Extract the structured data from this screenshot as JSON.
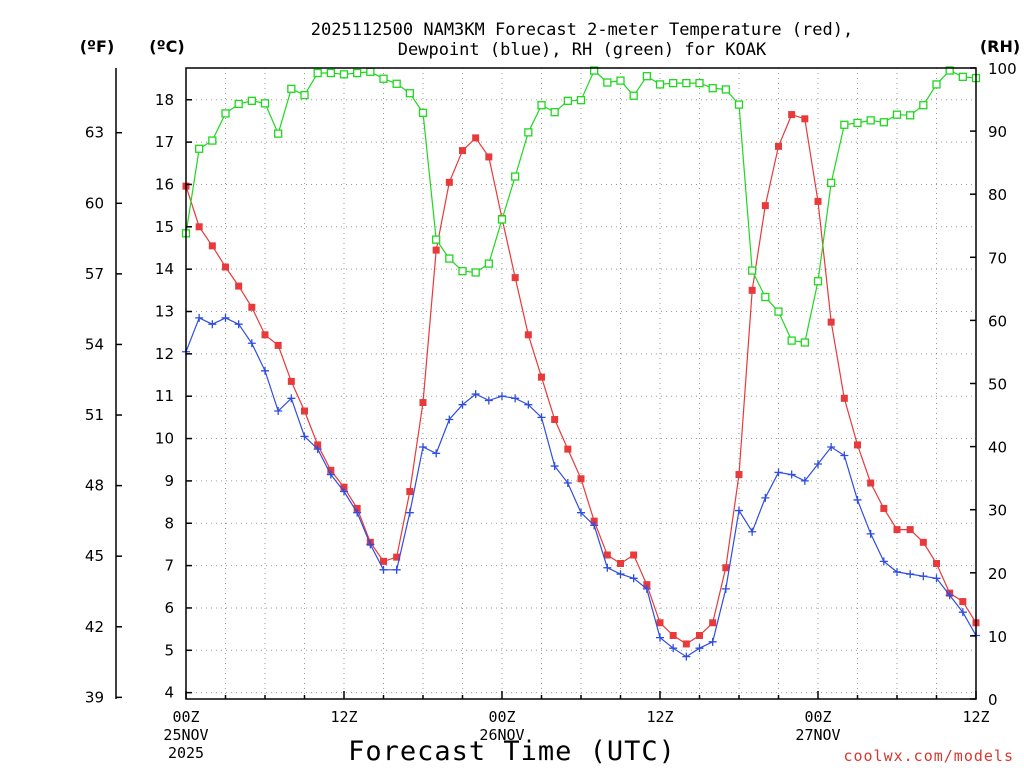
{
  "chart_data": {
    "type": "line",
    "title_line1": "2025112500 NAM3KM Forecast 2-meter Temperature (red),",
    "title_line2": "Dewpoint (blue), RH (green) for KOAK",
    "xlabel": "Forecast Time (UTC)",
    "credit": "coolwx.com/models",
    "units": {
      "fahrenheit": "(ºF)",
      "celsius": "(ºC)",
      "rh": "(RH)"
    },
    "x_range_hours": [
      0,
      60
    ],
    "y_celsius_range": [
      3.85,
      18.75
    ],
    "y_rh_range": [
      0,
      100
    ],
    "fahrenheit_ticks": [
      "39",
      "42",
      "45",
      "48",
      "51",
      "54",
      "57",
      "60",
      "63"
    ],
    "fahrenheit_tick_values": [
      39,
      42,
      45,
      48,
      51,
      54,
      57,
      60,
      63
    ],
    "celsius_ticks": [
      "4",
      "5",
      "6",
      "7",
      "8",
      "9",
      "10",
      "11",
      "12",
      "13",
      "14",
      "15",
      "16",
      "17",
      "18"
    ],
    "celsius_tick_values": [
      4,
      5,
      6,
      7,
      8,
      9,
      10,
      11,
      12,
      13,
      14,
      15,
      16,
      17,
      18
    ],
    "rh_ticks": [
      "0",
      "10",
      "20",
      "30",
      "40",
      "50",
      "60",
      "70",
      "80",
      "90",
      "100"
    ],
    "rh_tick_values": [
      0,
      10,
      20,
      30,
      40,
      50,
      60,
      70,
      80,
      90,
      100
    ],
    "x_ticks": [
      {
        "hour": 0,
        "line1": "00Z",
        "line2": "25NOV",
        "line3": "2025"
      },
      {
        "hour": 12,
        "line1": "12Z",
        "line2": "",
        "line3": ""
      },
      {
        "hour": 24,
        "line1": "00Z",
        "line2": "26NOV",
        "line3": ""
      },
      {
        "hour": 36,
        "line1": "12Z",
        "line2": "",
        "line3": ""
      },
      {
        "hour": 48,
        "line1": "00Z",
        "line2": "27NOV",
        "line3": ""
      },
      {
        "hour": 60,
        "line1": "12Z",
        "line2": "",
        "line3": ""
      }
    ],
    "series": [
      {
        "name": "2-meter Temperature",
        "color": "#e8393b",
        "unit": "C",
        "values": [
          15.96,
          15.0,
          14.55,
          14.05,
          13.6,
          13.1,
          12.45,
          12.2,
          11.35,
          10.65,
          9.85,
          9.25,
          8.85,
          8.35,
          7.55,
          7.1,
          7.2,
          8.75,
          10.85,
          14.45,
          16.05,
          16.8,
          17.1,
          16.65,
          15.2,
          13.8,
          12.45,
          11.45,
          10.45,
          9.75,
          9.05,
          8.05,
          7.25,
          7.05,
          7.25,
          6.55,
          5.65,
          5.35,
          5.15,
          5.35,
          5.65,
          6.95,
          9.15,
          13.5,
          15.5,
          16.9,
          17.65,
          17.55,
          15.6,
          12.75,
          10.95,
          9.85,
          8.95,
          8.35,
          7.85,
          7.85,
          7.55,
          7.05,
          6.35,
          6.15,
          5.65
        ]
      },
      {
        "name": "Dewpoint",
        "color": "#2f4de0",
        "unit": "C",
        "values": [
          12.05,
          12.85,
          12.7,
          12.85,
          12.7,
          12.25,
          11.6,
          10.65,
          10.95,
          10.05,
          9.75,
          9.15,
          8.75,
          8.25,
          7.5,
          6.9,
          6.9,
          8.25,
          9.8,
          9.65,
          10.45,
          10.8,
          11.05,
          10.9,
          11.0,
          10.95,
          10.8,
          10.5,
          9.35,
          8.95,
          8.25,
          7.95,
          6.95,
          6.8,
          6.7,
          6.45,
          5.3,
          5.05,
          4.85,
          5.05,
          5.2,
          6.45,
          8.3,
          7.8,
          8.6,
          9.2,
          9.15,
          9.0,
          9.4,
          9.8,
          9.6,
          8.55,
          7.75,
          7.1,
          6.85,
          6.8,
          6.75,
          6.7,
          6.3,
          5.9,
          5.35
        ]
      },
      {
        "name": "RH",
        "color": "#1ed81e",
        "unit": "%",
        "values": [
          73.8,
          87.2,
          88.5,
          92.8,
          94.3,
          94.8,
          94.4,
          89.6,
          96.7,
          95.7,
          99.2,
          99.2,
          99.0,
          99.2,
          99.4,
          98.3,
          97.5,
          96.0,
          92.9,
          72.8,
          69.8,
          67.8,
          67.6,
          69.0,
          76.0,
          82.8,
          89.8,
          94.1,
          93.0,
          94.8,
          94.9,
          99.6,
          97.7,
          98.0,
          95.6,
          98.7,
          97.4,
          97.6,
          97.6,
          97.6,
          96.8,
          96.6,
          94.2,
          67.9,
          63.7,
          61.4,
          56.8,
          56.5,
          66.2,
          81.8,
          91.0,
          91.3,
          91.7,
          91.4,
          92.6,
          92.5,
          94.1,
          97.4,
          99.6,
          98.6,
          98.4
        ]
      }
    ]
  }
}
